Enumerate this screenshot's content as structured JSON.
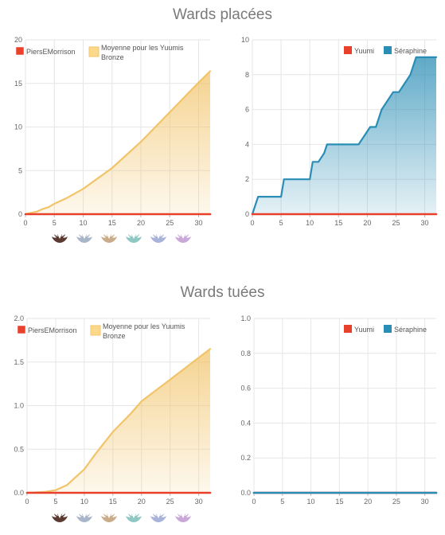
{
  "sections": [
    {
      "title": "Wards placées"
    },
    {
      "title": "Wards tuées"
    }
  ],
  "colors": {
    "player": "#e8402a",
    "average_line": "#f2c46a",
    "average_fill": "#fcd98a",
    "player2": "#2a8db5",
    "player2_fill": "#5fb3d0",
    "grid": "#e6e6e6",
    "axis": "#bbbbbb"
  },
  "rank_icons": [
    {
      "name": "iron-rank-icon",
      "color": "#5a3a30"
    },
    {
      "name": "bronze-rank-icon",
      "color": "#a9b6c9"
    },
    {
      "name": "silver-rank-icon",
      "color": "#c9ad8a"
    },
    {
      "name": "gold-rank-icon",
      "color": "#8fc7c3"
    },
    {
      "name": "platinum-rank-icon",
      "color": "#a9b2d9"
    },
    {
      "name": "diamond-rank-icon",
      "color": "#c9a9d9"
    }
  ],
  "chart_data": [
    {
      "type": "area",
      "section": "Wards placées",
      "xlim": [
        0,
        32
      ],
      "ylim": [
        0,
        20
      ],
      "xticks": [
        0,
        5,
        10,
        15,
        20,
        25,
        30
      ],
      "yticks": [
        0,
        5,
        10,
        15,
        20
      ],
      "ytick_labels": [
        "0",
        "5",
        "10",
        "15",
        "20"
      ],
      "legend": [
        "PiersEMorrison",
        "Moyenne pour les Yuumis Bronze"
      ],
      "series": [
        {
          "name": "PiersEMorrison",
          "style": "line",
          "color": "#e8402a",
          "x": [
            0,
            32
          ],
          "y": [
            0,
            0
          ]
        },
        {
          "name": "Moyenne pour les Yuumis Bronze",
          "style": "area",
          "color": "#f2c46a",
          "x": [
            0,
            2,
            3,
            4,
            5,
            7,
            10,
            15,
            20,
            25,
            30,
            32
          ],
          "y": [
            0,
            0.3,
            0.6,
            0.8,
            1.2,
            1.8,
            2.9,
            5.3,
            8.3,
            11.7,
            15.1,
            16.4
          ]
        }
      ]
    },
    {
      "type": "area",
      "section": "Wards placées",
      "xlim": [
        0,
        32
      ],
      "ylim": [
        0,
        10
      ],
      "xticks": [
        0,
        5,
        10,
        15,
        20,
        25,
        30
      ],
      "yticks": [
        0,
        2,
        4,
        6,
        8,
        10
      ],
      "ytick_labels": [
        "0",
        "2",
        "4",
        "6",
        "8",
        "10"
      ],
      "legend": [
        "Yuumi",
        "Séraphine"
      ],
      "series": [
        {
          "name": "Yuumi",
          "style": "line",
          "color": "#e8402a",
          "x": [
            0,
            32
          ],
          "y": [
            0,
            0
          ]
        },
        {
          "name": "Séraphine",
          "style": "area",
          "color": "#2a8db5",
          "x": [
            0,
            1,
            5,
            5.5,
            10,
            10.5,
            11.5,
            12.5,
            13,
            18.5,
            19.5,
            20.5,
            21.5,
            22.5,
            24.5,
            25.5,
            27.5,
            28.5,
            32
          ],
          "y": [
            0,
            1,
            1,
            2,
            2,
            3,
            3,
            3.5,
            4,
            4,
            4.5,
            5,
            5,
            6,
            7,
            7,
            8,
            9,
            9
          ]
        }
      ]
    },
    {
      "type": "area",
      "section": "Wards tuées",
      "xlim": [
        0,
        32
      ],
      "ylim": [
        0,
        2
      ],
      "xticks": [
        0,
        5,
        10,
        15,
        20,
        25,
        30
      ],
      "yticks": [
        0,
        0.5,
        1,
        1.5,
        2
      ],
      "ytick_labels": [
        "0.0",
        "0.5",
        "1.0",
        "1.5",
        "2.0"
      ],
      "legend": [
        "PiersEMorrison",
        "Moyenne pour les Yuumis Bronze"
      ],
      "series": [
        {
          "name": "PiersEMorrison",
          "style": "line",
          "color": "#e8402a",
          "x": [
            0,
            32
          ],
          "y": [
            0,
            0
          ]
        },
        {
          "name": "Moyenne pour les Yuumis Bronze",
          "style": "area",
          "color": "#f2c46a",
          "x": [
            0,
            3,
            5,
            7,
            10,
            12,
            15,
            18,
            20,
            22,
            25,
            28,
            30,
            32
          ],
          "y": [
            0,
            0.01,
            0.03,
            0.09,
            0.27,
            0.45,
            0.7,
            0.9,
            1.05,
            1.15,
            1.3,
            1.45,
            1.55,
            1.65
          ]
        }
      ]
    },
    {
      "type": "area",
      "section": "Wards tuées",
      "xlim": [
        0,
        32
      ],
      "ylim": [
        0,
        1
      ],
      "xticks": [
        0,
        5,
        10,
        15,
        20,
        25,
        30
      ],
      "yticks": [
        0,
        0.2,
        0.4,
        0.6,
        0.8,
        1
      ],
      "ytick_labels": [
        "0.0",
        "0.2",
        "0.4",
        "0.6",
        "0.8",
        "1.0"
      ],
      "legend": [
        "Yuumi",
        "Séraphine"
      ],
      "series": [
        {
          "name": "Yuumi",
          "style": "line",
          "color": "#e8402a",
          "x": [
            0,
            32
          ],
          "y": [
            0,
            0
          ]
        },
        {
          "name": "Séraphine",
          "style": "line",
          "color": "#2a8db5",
          "x": [
            0,
            32
          ],
          "y": [
            0,
            0
          ]
        }
      ]
    }
  ]
}
